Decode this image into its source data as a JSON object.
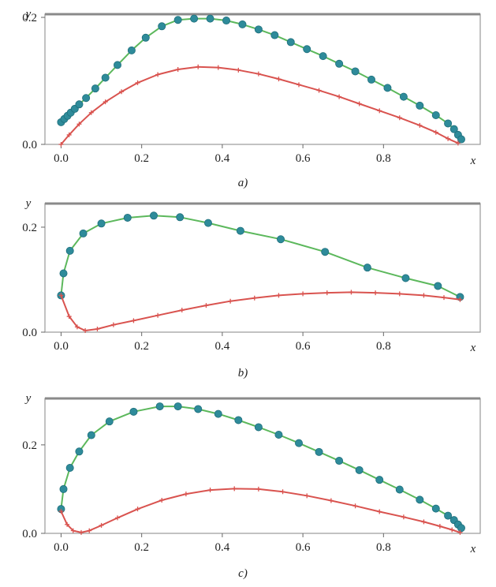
{
  "chart_data": [
    {
      "type": "line",
      "panel_label": "a)",
      "xlabel": "x",
      "ylabel": "y",
      "xlim": [
        -0.04,
        1.04
      ],
      "ylim": [
        0,
        0.205
      ],
      "xticks": [
        "0.0",
        "0.2",
        "0.4",
        "0.6",
        "0.8"
      ],
      "yticks": [
        "0.0",
        "0.2"
      ],
      "series": [
        {
          "style": "markers-line",
          "color": "#2e8b9a",
          "line_color": "#5cb85c",
          "x": [
            0.0,
            0.008,
            0.016,
            0.024,
            0.034,
            0.045,
            0.062,
            0.085,
            0.11,
            0.14,
            0.175,
            0.21,
            0.25,
            0.29,
            0.33,
            0.37,
            0.41,
            0.45,
            0.49,
            0.53,
            0.57,
            0.61,
            0.65,
            0.69,
            0.73,
            0.77,
            0.81,
            0.85,
            0.89,
            0.93,
            0.96,
            0.975,
            0.985,
            0.993
          ],
          "y": [
            0.035,
            0.04,
            0.045,
            0.05,
            0.056,
            0.063,
            0.073,
            0.088,
            0.105,
            0.125,
            0.148,
            0.168,
            0.186,
            0.196,
            0.198,
            0.198,
            0.195,
            0.189,
            0.181,
            0.172,
            0.161,
            0.15,
            0.139,
            0.127,
            0.115,
            0.102,
            0.089,
            0.075,
            0.061,
            0.046,
            0.033,
            0.024,
            0.015,
            0.008
          ]
        },
        {
          "style": "plus-line",
          "color": "#d9534f",
          "x": [
            0.0,
            0.02,
            0.045,
            0.075,
            0.11,
            0.15,
            0.19,
            0.24,
            0.29,
            0.34,
            0.39,
            0.44,
            0.49,
            0.54,
            0.59,
            0.64,
            0.69,
            0.74,
            0.79,
            0.84,
            0.89,
            0.93,
            0.96,
            0.985
          ],
          "y": [
            0.0,
            0.015,
            0.032,
            0.05,
            0.067,
            0.083,
            0.097,
            0.11,
            0.118,
            0.122,
            0.121,
            0.117,
            0.111,
            0.103,
            0.094,
            0.085,
            0.075,
            0.064,
            0.053,
            0.042,
            0.03,
            0.019,
            0.009,
            0.002
          ]
        }
      ]
    },
    {
      "type": "line",
      "panel_label": "b)",
      "xlabel": "x",
      "ylabel": "y",
      "xlim": [
        -0.04,
        1.04
      ],
      "ylim": [
        0,
        0.245
      ],
      "xticks": [
        "0.0",
        "0.2",
        "0.4",
        "0.6",
        "0.8"
      ],
      "yticks": [
        "0.0",
        "0.2"
      ],
      "series": [
        {
          "style": "markers-line",
          "color": "#2e8b9a",
          "line_color": "#5cb85c",
          "x": [
            0.0,
            0.006,
            0.022,
            0.055,
            0.1,
            0.165,
            0.23,
            0.295,
            0.365,
            0.445,
            0.545,
            0.655,
            0.76,
            0.855,
            0.935,
            0.99
          ],
          "y": [
            0.07,
            0.112,
            0.155,
            0.188,
            0.207,
            0.218,
            0.222,
            0.219,
            0.208,
            0.193,
            0.177,
            0.153,
            0.123,
            0.103,
            0.088,
            0.067
          ]
        },
        {
          "style": "plus-line",
          "color": "#d9534f",
          "x": [
            0.0,
            0.02,
            0.04,
            0.06,
            0.09,
            0.13,
            0.18,
            0.24,
            0.3,
            0.36,
            0.42,
            0.48,
            0.54,
            0.6,
            0.66,
            0.72,
            0.78,
            0.84,
            0.9,
            0.95,
            0.99
          ],
          "y": [
            0.07,
            0.03,
            0.01,
            0.003,
            0.006,
            0.014,
            0.022,
            0.032,
            0.042,
            0.051,
            0.059,
            0.065,
            0.07,
            0.073,
            0.075,
            0.076,
            0.075,
            0.073,
            0.07,
            0.066,
            0.062
          ]
        }
      ]
    },
    {
      "type": "line",
      "panel_label": "c)",
      "xlabel": "x",
      "ylabel": "y",
      "xlim": [
        -0.04,
        1.04
      ],
      "ylim": [
        0,
        0.305
      ],
      "xticks": [
        "0.0",
        "0.2",
        "0.4",
        "0.6",
        "0.8"
      ],
      "yticks": [
        "0.0",
        "0.2"
      ],
      "series": [
        {
          "style": "markers-line",
          "color": "#2e8b9a",
          "line_color": "#5cb85c",
          "x": [
            0.0,
            0.006,
            0.022,
            0.045,
            0.075,
            0.12,
            0.18,
            0.245,
            0.29,
            0.34,
            0.39,
            0.44,
            0.49,
            0.54,
            0.59,
            0.64,
            0.69,
            0.74,
            0.79,
            0.84,
            0.89,
            0.93,
            0.96,
            0.975,
            0.985,
            0.993
          ],
          "y": [
            0.055,
            0.1,
            0.148,
            0.185,
            0.222,
            0.253,
            0.275,
            0.287,
            0.287,
            0.281,
            0.27,
            0.256,
            0.24,
            0.223,
            0.204,
            0.184,
            0.164,
            0.143,
            0.121,
            0.099,
            0.076,
            0.056,
            0.04,
            0.03,
            0.02,
            0.012
          ]
        },
        {
          "style": "plus-line",
          "color": "#d9534f",
          "x": [
            0.0,
            0.015,
            0.03,
            0.05,
            0.07,
            0.1,
            0.14,
            0.19,
            0.25,
            0.31,
            0.37,
            0.43,
            0.49,
            0.55,
            0.61,
            0.67,
            0.73,
            0.79,
            0.85,
            0.9,
            0.94,
            0.97,
            0.99
          ],
          "y": [
            0.05,
            0.02,
            0.006,
            0.002,
            0.006,
            0.018,
            0.035,
            0.055,
            0.075,
            0.089,
            0.098,
            0.101,
            0.1,
            0.094,
            0.085,
            0.074,
            0.062,
            0.049,
            0.037,
            0.026,
            0.016,
            0.008,
            0.002
          ]
        }
      ]
    }
  ]
}
